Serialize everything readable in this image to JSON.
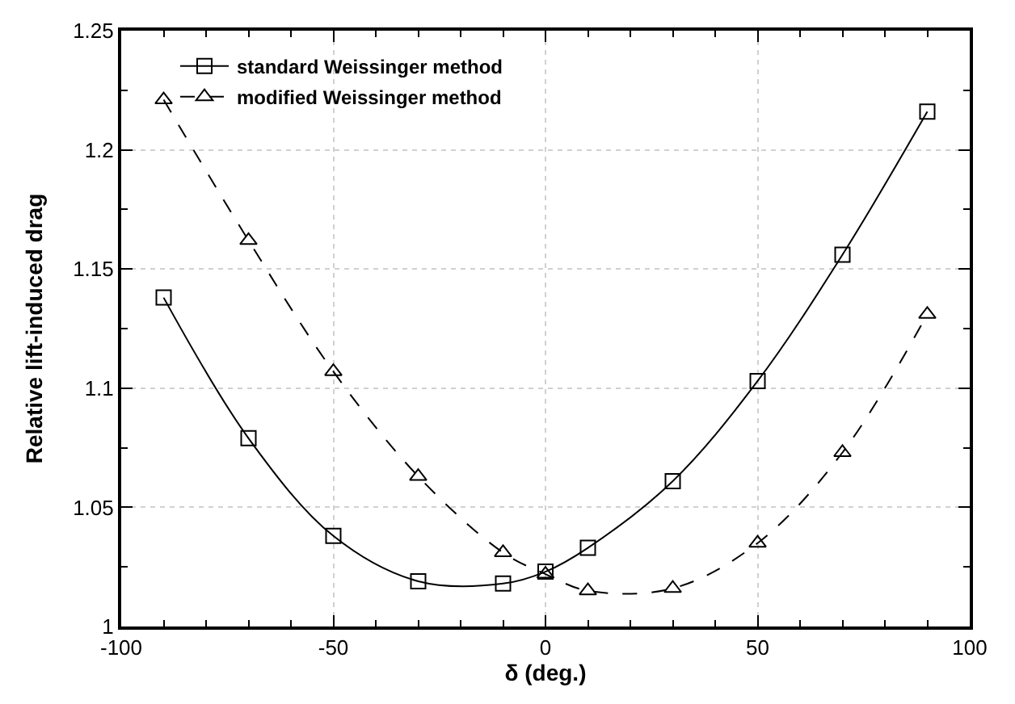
{
  "chart_data": {
    "type": "line",
    "xlabel": "δ (deg.)",
    "ylabel": "Relative lift-induced drag",
    "x": [
      -90,
      -70,
      -50,
      -30,
      -10,
      0,
      10,
      30,
      50,
      70,
      90
    ],
    "series": [
      {
        "name": "standard Weissinger method",
        "color": "#000000",
        "marker": "square",
        "line_style": "solid",
        "values": [
          1.138,
          1.079,
          1.038,
          1.019,
          1.018,
          1.023,
          1.033,
          1.061,
          1.103,
          1.156,
          1.216
        ]
      },
      {
        "name": "modified Weissinger method",
        "color": "#000000",
        "marker": "triangle",
        "line_style": "dashed",
        "values": [
          1.221,
          1.162,
          1.107,
          1.063,
          1.031,
          1.022,
          1.015,
          1.016,
          1.035,
          1.073,
          1.131
        ]
      }
    ],
    "xlim": [
      -100,
      100
    ],
    "xticks": [
      -100,
      -50,
      0,
      50,
      100
    ],
    "ylim": [
      1,
      1.25
    ],
    "yticks": [
      1,
      1.05,
      1.1,
      1.15,
      1.2,
      1.25
    ],
    "grid": true,
    "legend": "top left"
  }
}
